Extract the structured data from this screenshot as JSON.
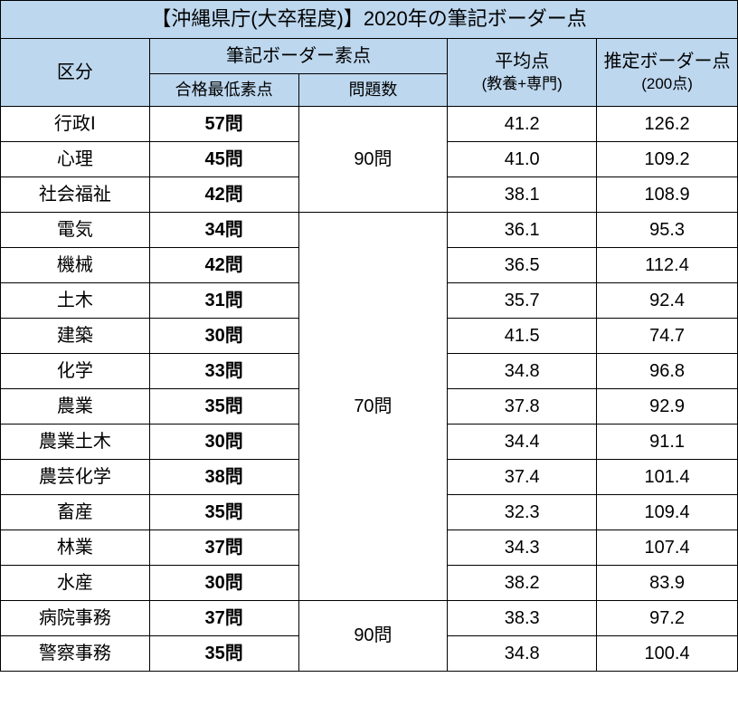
{
  "table": {
    "title": "【沖縄県庁(大卒程度)】2020年の筆記ボーダー点",
    "headers": {
      "category": "区分",
      "score_group": "筆記ボーダー素点",
      "min_score": "合格最低素点",
      "question_count": "問題数",
      "avg_main": "平均点",
      "avg_sub": "(教養+専門)",
      "border_main": "推定ボーダー点",
      "border_sub": "(200点)"
    },
    "groups": [
      {
        "question_count": "90問",
        "rows": [
          {
            "category": "行政Ⅰ",
            "min_score": "57問",
            "avg": "41.2",
            "border": "126.2"
          },
          {
            "category": "心理",
            "min_score": "45問",
            "avg": "41.0",
            "border": "109.2"
          },
          {
            "category": "社会福祉",
            "min_score": "42問",
            "avg": "38.1",
            "border": "108.9"
          }
        ]
      },
      {
        "question_count": "70問",
        "rows": [
          {
            "category": "電気",
            "min_score": "34問",
            "avg": "36.1",
            "border": "95.3"
          },
          {
            "category": "機械",
            "min_score": "42問",
            "avg": "36.5",
            "border": "112.4"
          },
          {
            "category": "土木",
            "min_score": "31問",
            "avg": "35.7",
            "border": "92.4"
          },
          {
            "category": "建築",
            "min_score": "30問",
            "avg": "41.5",
            "border": "74.7"
          },
          {
            "category": "化学",
            "min_score": "33問",
            "avg": "34.8",
            "border": "96.8"
          },
          {
            "category": "農業",
            "min_score": "35問",
            "avg": "37.8",
            "border": "92.9"
          },
          {
            "category": "農業土木",
            "min_score": "30問",
            "avg": "34.4",
            "border": "91.1"
          },
          {
            "category": "農芸化学",
            "min_score": "38問",
            "avg": "37.4",
            "border": "101.4"
          },
          {
            "category": "畜産",
            "min_score": "35問",
            "avg": "32.3",
            "border": "109.4"
          },
          {
            "category": "林業",
            "min_score": "37問",
            "avg": "34.3",
            "border": "107.4"
          },
          {
            "category": "水産",
            "min_score": "30問",
            "avg": "38.2",
            "border": "83.9"
          }
        ]
      },
      {
        "question_count": "90問",
        "rows": [
          {
            "category": "病院事務",
            "min_score": "37問",
            "avg": "38.3",
            "border": "97.2"
          },
          {
            "category": "警察事務",
            "min_score": "35問",
            "avg": "34.8",
            "border": "100.4"
          }
        ]
      }
    ],
    "colors": {
      "header_bg": "#bdd7ee",
      "border": "#000000",
      "bg": "#ffffff"
    },
    "fonts": {
      "title_size": 22,
      "header_size": 20,
      "subheader_size": 18,
      "cell_size": 20
    }
  }
}
